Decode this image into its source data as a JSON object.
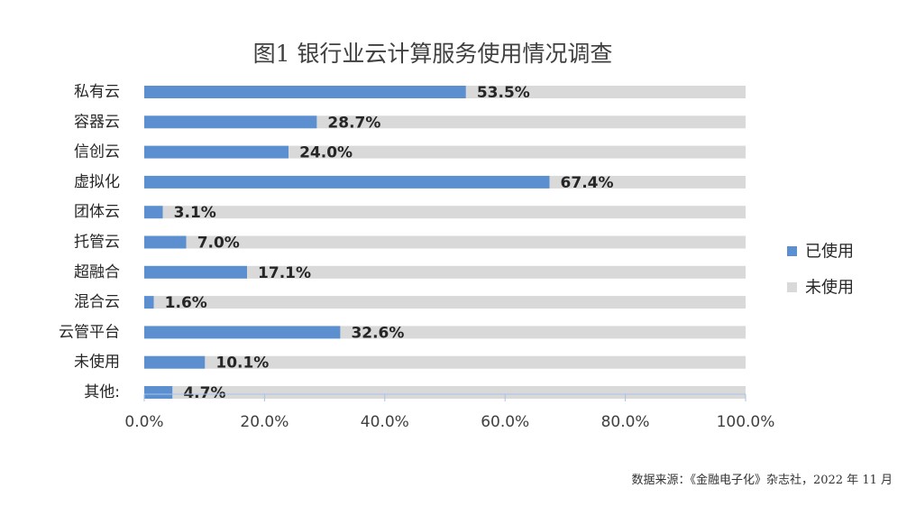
{
  "chart_data": {
    "type": "bar",
    "orientation": "horizontal",
    "stacked": true,
    "title": "图1 银行业云计算服务使用情况调查",
    "categories": [
      "私有云",
      "容器云",
      "信创云",
      "虚拟化",
      "团体云",
      "托管云",
      "超融合",
      "混合云",
      "云管平台",
      "未使用",
      "其他:"
    ],
    "series": [
      {
        "name": "已使用",
        "color": "#5B8FD0",
        "values": [
          53.5,
          28.7,
          24.0,
          67.4,
          3.1,
          7.0,
          17.1,
          1.6,
          32.6,
          10.1,
          4.7
        ]
      },
      {
        "name": "未使用",
        "color": "#D9D9D9",
        "values": [
          46.5,
          71.3,
          76.0,
          32.6,
          96.9,
          93.0,
          82.9,
          98.4,
          67.4,
          89.9,
          95.3
        ]
      }
    ],
    "data_labels": [
      "53.5%",
      "28.7%",
      "24.0%",
      "67.4%",
      "3.1%",
      "7.0%",
      "17.1%",
      "1.6%",
      "32.6%",
      "10.1%",
      "4.7%"
    ],
    "xlim": [
      0,
      100
    ],
    "xticks": [
      0,
      20,
      40,
      60,
      80,
      100
    ],
    "xtick_labels": [
      "0.0%",
      "20.0%",
      "40.0%",
      "60.0%",
      "80.0%",
      "100.0%"
    ],
    "grid": false,
    "legend_position": "right"
  },
  "source_note": "数据来源：《金融电子化》杂志社，2022 年 11 月"
}
